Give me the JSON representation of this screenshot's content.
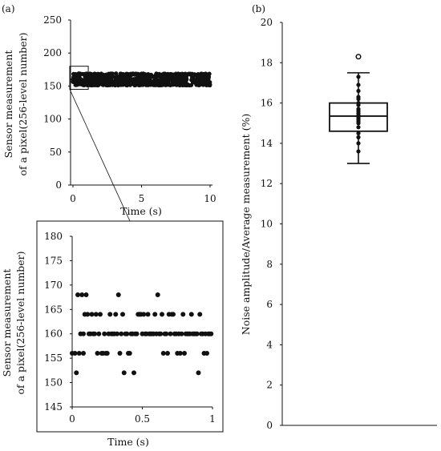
{
  "panel_a_label": "(a)",
  "panel_b_label": "(b)",
  "colors": {
    "ink": "#111111",
    "background": "#ffffff"
  },
  "chart_data": [
    {
      "id": "a-top",
      "type": "scatter",
      "xlabel": "Time (s)",
      "ylabel_lines": [
        "Sensor measurement",
        "of a pixel(256-level number)"
      ],
      "xlim": [
        0,
        10
      ],
      "ylim": [
        0,
        250
      ],
      "xticks": [
        "0",
        "5",
        "10"
      ],
      "yticks": [
        "0",
        "50",
        "100",
        "150",
        "200",
        "250"
      ],
      "grid": false,
      "band": {
        "x_range": [
          0,
          10
        ],
        "y_range": [
          150,
          170
        ]
      },
      "inset_box": {
        "x": [
          0,
          1
        ],
        "y": [
          145,
          180
        ]
      }
    },
    {
      "id": "a-zoom",
      "type": "scatter",
      "xlabel": "Time (s)",
      "ylabel_lines": [
        "Sensor measurement",
        "of a pixel(256-level number)"
      ],
      "xlim": [
        0,
        1
      ],
      "ylim": [
        145,
        180
      ],
      "xticks": [
        "0",
        "0.5",
        "1"
      ],
      "yticks": [
        "145",
        "150",
        "155",
        "160",
        "165",
        "170",
        "175",
        "180"
      ],
      "grid": false,
      "points": [
        {
          "x": 0.0,
          "y": 156
        },
        {
          "x": 0.02,
          "y": 156
        },
        {
          "x": 0.03,
          "y": 152
        },
        {
          "x": 0.04,
          "y": 168
        },
        {
          "x": 0.05,
          "y": 156
        },
        {
          "x": 0.06,
          "y": 160
        },
        {
          "x": 0.07,
          "y": 168
        },
        {
          "x": 0.08,
          "y": 160
        },
        {
          "x": 0.08,
          "y": 156
        },
        {
          "x": 0.09,
          "y": 164
        },
        {
          "x": 0.1,
          "y": 168
        },
        {
          "x": 0.11,
          "y": 164
        },
        {
          "x": 0.12,
          "y": 160
        },
        {
          "x": 0.13,
          "y": 160
        },
        {
          "x": 0.14,
          "y": 164
        },
        {
          "x": 0.15,
          "y": 160
        },
        {
          "x": 0.16,
          "y": 160
        },
        {
          "x": 0.17,
          "y": 164
        },
        {
          "x": 0.18,
          "y": 156
        },
        {
          "x": 0.19,
          "y": 160
        },
        {
          "x": 0.2,
          "y": 164
        },
        {
          "x": 0.21,
          "y": 156
        },
        {
          "x": 0.22,
          "y": 156
        },
        {
          "x": 0.23,
          "y": 160
        },
        {
          "x": 0.24,
          "y": 156
        },
        {
          "x": 0.25,
          "y": 156
        },
        {
          "x": 0.26,
          "y": 160
        },
        {
          "x": 0.27,
          "y": 164
        },
        {
          "x": 0.28,
          "y": 160
        },
        {
          "x": 0.29,
          "y": 160
        },
        {
          "x": 0.3,
          "y": 160
        },
        {
          "x": 0.31,
          "y": 164
        },
        {
          "x": 0.32,
          "y": 160
        },
        {
          "x": 0.33,
          "y": 168
        },
        {
          "x": 0.34,
          "y": 156
        },
        {
          "x": 0.35,
          "y": 160
        },
        {
          "x": 0.36,
          "y": 164
        },
        {
          "x": 0.37,
          "y": 152
        },
        {
          "x": 0.38,
          "y": 160
        },
        {
          "x": 0.39,
          "y": 160
        },
        {
          "x": 0.4,
          "y": 156
        },
        {
          "x": 0.41,
          "y": 156
        },
        {
          "x": 0.42,
          "y": 160
        },
        {
          "x": 0.43,
          "y": 160
        },
        {
          "x": 0.44,
          "y": 152
        },
        {
          "x": 0.45,
          "y": 160
        },
        {
          "x": 0.46,
          "y": 160
        },
        {
          "x": 0.47,
          "y": 164
        },
        {
          "x": 0.48,
          "y": 164
        },
        {
          "x": 0.49,
          "y": 164
        },
        {
          "x": 0.5,
          "y": 160
        },
        {
          "x": 0.51,
          "y": 164
        },
        {
          "x": 0.52,
          "y": 160
        },
        {
          "x": 0.53,
          "y": 160
        },
        {
          "x": 0.54,
          "y": 164
        },
        {
          "x": 0.55,
          "y": 160
        },
        {
          "x": 0.56,
          "y": 160
        },
        {
          "x": 0.57,
          "y": 160
        },
        {
          "x": 0.58,
          "y": 160
        },
        {
          "x": 0.59,
          "y": 164
        },
        {
          "x": 0.6,
          "y": 160
        },
        {
          "x": 0.61,
          "y": 168
        },
        {
          "x": 0.62,
          "y": 160
        },
        {
          "x": 0.63,
          "y": 160
        },
        {
          "x": 0.64,
          "y": 164
        },
        {
          "x": 0.65,
          "y": 156
        },
        {
          "x": 0.66,
          "y": 160
        },
        {
          "x": 0.67,
          "y": 160
        },
        {
          "x": 0.68,
          "y": 156
        },
        {
          "x": 0.69,
          "y": 164
        },
        {
          "x": 0.7,
          "y": 160
        },
        {
          "x": 0.71,
          "y": 164
        },
        {
          "x": 0.72,
          "y": 164
        },
        {
          "x": 0.73,
          "y": 160
        },
        {
          "x": 0.74,
          "y": 160
        },
        {
          "x": 0.75,
          "y": 156
        },
        {
          "x": 0.76,
          "y": 160
        },
        {
          "x": 0.77,
          "y": 156
        },
        {
          "x": 0.78,
          "y": 160
        },
        {
          "x": 0.79,
          "y": 164
        },
        {
          "x": 0.8,
          "y": 156
        },
        {
          "x": 0.81,
          "y": 160
        },
        {
          "x": 0.82,
          "y": 160
        },
        {
          "x": 0.83,
          "y": 160
        },
        {
          "x": 0.84,
          "y": 160
        },
        {
          "x": 0.85,
          "y": 164
        },
        {
          "x": 0.86,
          "y": 160
        },
        {
          "x": 0.87,
          "y": 160
        },
        {
          "x": 0.88,
          "y": 160
        },
        {
          "x": 0.89,
          "y": 160
        },
        {
          "x": 0.9,
          "y": 152
        },
        {
          "x": 0.91,
          "y": 164
        },
        {
          "x": 0.92,
          "y": 160
        },
        {
          "x": 0.93,
          "y": 160
        },
        {
          "x": 0.94,
          "y": 156
        },
        {
          "x": 0.95,
          "y": 160
        },
        {
          "x": 0.96,
          "y": 156
        },
        {
          "x": 0.97,
          "y": 160
        },
        {
          "x": 0.98,
          "y": 160
        },
        {
          "x": 0.99,
          "y": 160
        }
      ]
    },
    {
      "id": "b-box",
      "type": "box",
      "ylabel": "Noise amplitude/Average measurement (%)",
      "ylim": [
        0,
        20
      ],
      "yticks": [
        "0",
        "2",
        "4",
        "6",
        "8",
        "10",
        "12",
        "14",
        "16",
        "18",
        "20"
      ],
      "grid": false,
      "box": {
        "min": 13.0,
        "q1": 14.6,
        "median": 15.35,
        "q3": 16.0,
        "max": 17.5
      },
      "outliers": [
        18.3
      ],
      "points": [
        13.6,
        14.0,
        14.3,
        14.5,
        14.8,
        15.0,
        15.1,
        15.2,
        15.3,
        15.4,
        15.5,
        15.6,
        15.7,
        15.9,
        16.0,
        16.2,
        16.3,
        16.6,
        16.9,
        17.3
      ]
    }
  ]
}
